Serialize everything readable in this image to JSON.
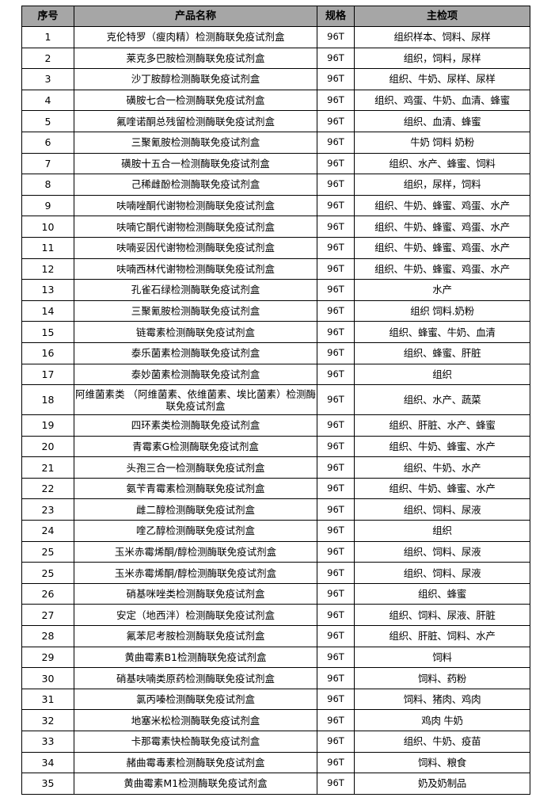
{
  "table": {
    "headers": [
      "序号",
      "产品名称",
      "规格",
      "主检项"
    ],
    "rows": [
      [
        "1",
        "克伦特罗（瘦肉精）检测酶联免疫试剂盒",
        "96T",
        "组织样本、饲料、尿样"
      ],
      [
        "2",
        "莱克多巴胺检测酶联免疫试剂盒",
        "96T",
        "组织，饲料，尿样"
      ],
      [
        "3",
        "沙丁胺醇检测酶联免疫试剂盒",
        "96T",
        "组织、牛奶、尿样、尿样"
      ],
      [
        "4",
        "磺胺七合一检测酶联免疫试剂盒",
        "96T",
        "组织、鸡蛋、牛奶、血清、蜂蜜"
      ],
      [
        "5",
        "氟喹诺酮总残留检测酶联免疫试剂盒",
        "96T",
        "组织、血清、蜂蜜"
      ],
      [
        "6",
        "三聚氰胺检测酶联免疫试剂盒",
        "96T",
        "牛奶  饲料  奶粉"
      ],
      [
        "7",
        "磺胺十五合一检测酶联免疫试剂盒",
        "96T",
        "组织、水产、蜂蜜、饲料"
      ],
      [
        "8",
        "己稀雌酚检测酶联免疫试剂盒",
        "96T",
        "组织，尿样，饲料"
      ],
      [
        "9",
        "呋喃唑酮代谢物检测酶联免疫试剂盒",
        "96T",
        "组织、牛奶、蜂蜜、鸡蛋、水产"
      ],
      [
        "10",
        "呋喃它酮代谢物检测酶联免疫试剂盒",
        "96T",
        "组织、牛奶、蜂蜜、鸡蛋、水产"
      ],
      [
        "11",
        "呋喃妥因代谢物检测酶联免疫试剂盒",
        "96T",
        "组织、牛奶、蜂蜜、鸡蛋、水产"
      ],
      [
        "12",
        "呋喃西林代谢物检测酶联免疫试剂盒",
        "96T",
        "组织、牛奶、蜂蜜、鸡蛋、水产"
      ],
      [
        "13",
        "孔雀石绿检测酶联免疫试剂盒",
        "96T",
        "水产"
      ],
      [
        "14",
        "三聚氰胺检测酶联免疫试剂盒",
        "96T",
        "组织  饲料.奶粉"
      ],
      [
        "15",
        "链霉素检测酶联免疫试剂盒",
        "96T",
        "组织、蜂蜜、牛奶、血清"
      ],
      [
        "16",
        "泰乐菌素检测酶联免疫试剂盒",
        "96T",
        "组织、蜂蜜、肝脏"
      ],
      [
        "17",
        "泰妙菌素检测酶联免疫试剂盒",
        "96T",
        "组织"
      ],
      [
        "18",
        "阿维菌素类 （阿维菌素、依维菌素、埃比菌素）检测酶联免疫试剂盒",
        "96T",
        "组织、水产、蔬菜"
      ],
      [
        "19",
        "四环素类检测酶联免疫试剂盒",
        "96T",
        "组织、肝脏、水产、蜂蜜"
      ],
      [
        "20",
        "青霉素G检测酶联免疫试剂盒",
        "96T",
        "组织、牛奶、蜂蜜、水产"
      ],
      [
        "21",
        "头孢三合一检测酶联免疫试剂盒",
        "96T",
        "组织、牛奶、水产"
      ],
      [
        "22",
        "氨苄青霉素检测酶联免疫试剂盒",
        "96T",
        "组织、牛奶、蜂蜜、水产"
      ],
      [
        "23",
        "雌二醇检测酶联免疫试剂盒",
        "96T",
        "组织、饲料、尿液"
      ],
      [
        "24",
        "喹乙醇检测酶联免疫试剂盒",
        "96T",
        "组织"
      ],
      [
        "25",
        "玉米赤霉烯酮/醇检测酶联免疫试剂盒",
        "96T",
        "组织、饲料、尿液"
      ],
      [
        "25",
        "玉米赤霉烯酮/醇检测酶联免疫试剂盒",
        "96T",
        "组织、饲料、尿液"
      ],
      [
        "26",
        "硝基咪唑类检测酶联免疫试剂盒",
        "96T",
        "组织、蜂蜜"
      ],
      [
        "27",
        "安定（地西泮）检测酶联免疫试剂盒",
        "96T",
        "组织、饲料、尿液、肝脏"
      ],
      [
        "28",
        "氟苯尼考胺检测酶联免疫试剂盒",
        "96T",
        "组织、肝脏、饲料、水产"
      ],
      [
        "29",
        "黄曲霉素B1检测酶联免疫试剂盒",
        "96T",
        "饲料"
      ],
      [
        "30",
        "硝基呋喃类原药检测酶联免疫试剂盒",
        "96T",
        "饲料、药粉"
      ],
      [
        "31",
        "氯丙嗪检测酶联免疫试剂盒",
        "96T",
        "饲料、猪肉、鸡肉"
      ],
      [
        "32",
        "地塞米松检测酶联免疫试剂盒",
        "96T",
        "鸡肉  牛奶"
      ],
      [
        "33",
        "卡那霉素快检酶联免疫试剂盒",
        "96T",
        "组织、牛奶、疫苗"
      ],
      [
        "34",
        "赭曲霉毒素检测酶联免疫试剂盒",
        "96T",
        "饲料、粮食"
      ],
      [
        "35",
        "黄曲霉素M1检测酶联免疫试剂盒",
        "96T",
        "奶及奶制品"
      ]
    ]
  },
  "colors": {
    "header_bg": "#a6a6a6",
    "border": "#000000"
  }
}
